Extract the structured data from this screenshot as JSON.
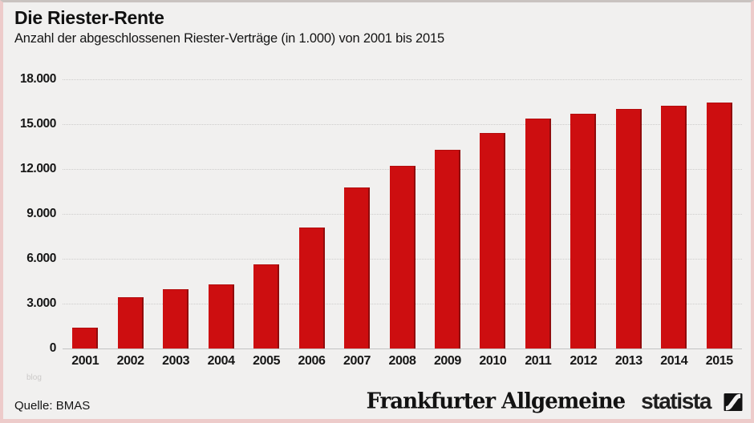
{
  "header": {
    "title": "Die Riester-Rente",
    "subtitle": "Anzahl der abgeschlossenen Riester-Verträge (in 1.000) von 2001 bis 2015"
  },
  "watermark": "blog",
  "footer": {
    "source_label": "Quelle: BMAS",
    "brand_left": "Frankfurter Allgemeine",
    "brand_right": "statista"
  },
  "colors": {
    "bar": "#cd0e10",
    "bar_edge": "#900b0c",
    "background": "#f1f0ef",
    "frame_border": "#edcbca"
  },
  "chart_data": {
    "type": "bar",
    "title": "Die Riester-Rente",
    "subtitle": "Anzahl der abgeschlossenen Riester-Verträge (in 1.000) von 2001 bis 2015",
    "unit": "in 1.000",
    "source": "BMAS",
    "categories": [
      "2001",
      "2002",
      "2003",
      "2004",
      "2005",
      "2006",
      "2007",
      "2008",
      "2009",
      "2010",
      "2011",
      "2012",
      "2013",
      "2014",
      "2015"
    ],
    "values": [
      1400,
      3450,
      3950,
      4300,
      5650,
      8100,
      10750,
      12200,
      13300,
      14400,
      15400,
      15700,
      16000,
      16250,
      16450
    ],
    "ylim": [
      0,
      18000
    ],
    "yticks": [
      {
        "value": 18000,
        "label": "18.000"
      },
      {
        "value": 15000,
        "label": "15.000"
      },
      {
        "value": 12000,
        "label": "12.000"
      },
      {
        "value": 9000,
        "label": "9.000"
      },
      {
        "value": 6000,
        "label": "6.000"
      },
      {
        "value": 3000,
        "label": "3.000"
      },
      {
        "value": 0,
        "label": "0"
      }
    ],
    "grid": "horizontal dotted",
    "legend": "none",
    "bar_color": "#cd0e10"
  }
}
